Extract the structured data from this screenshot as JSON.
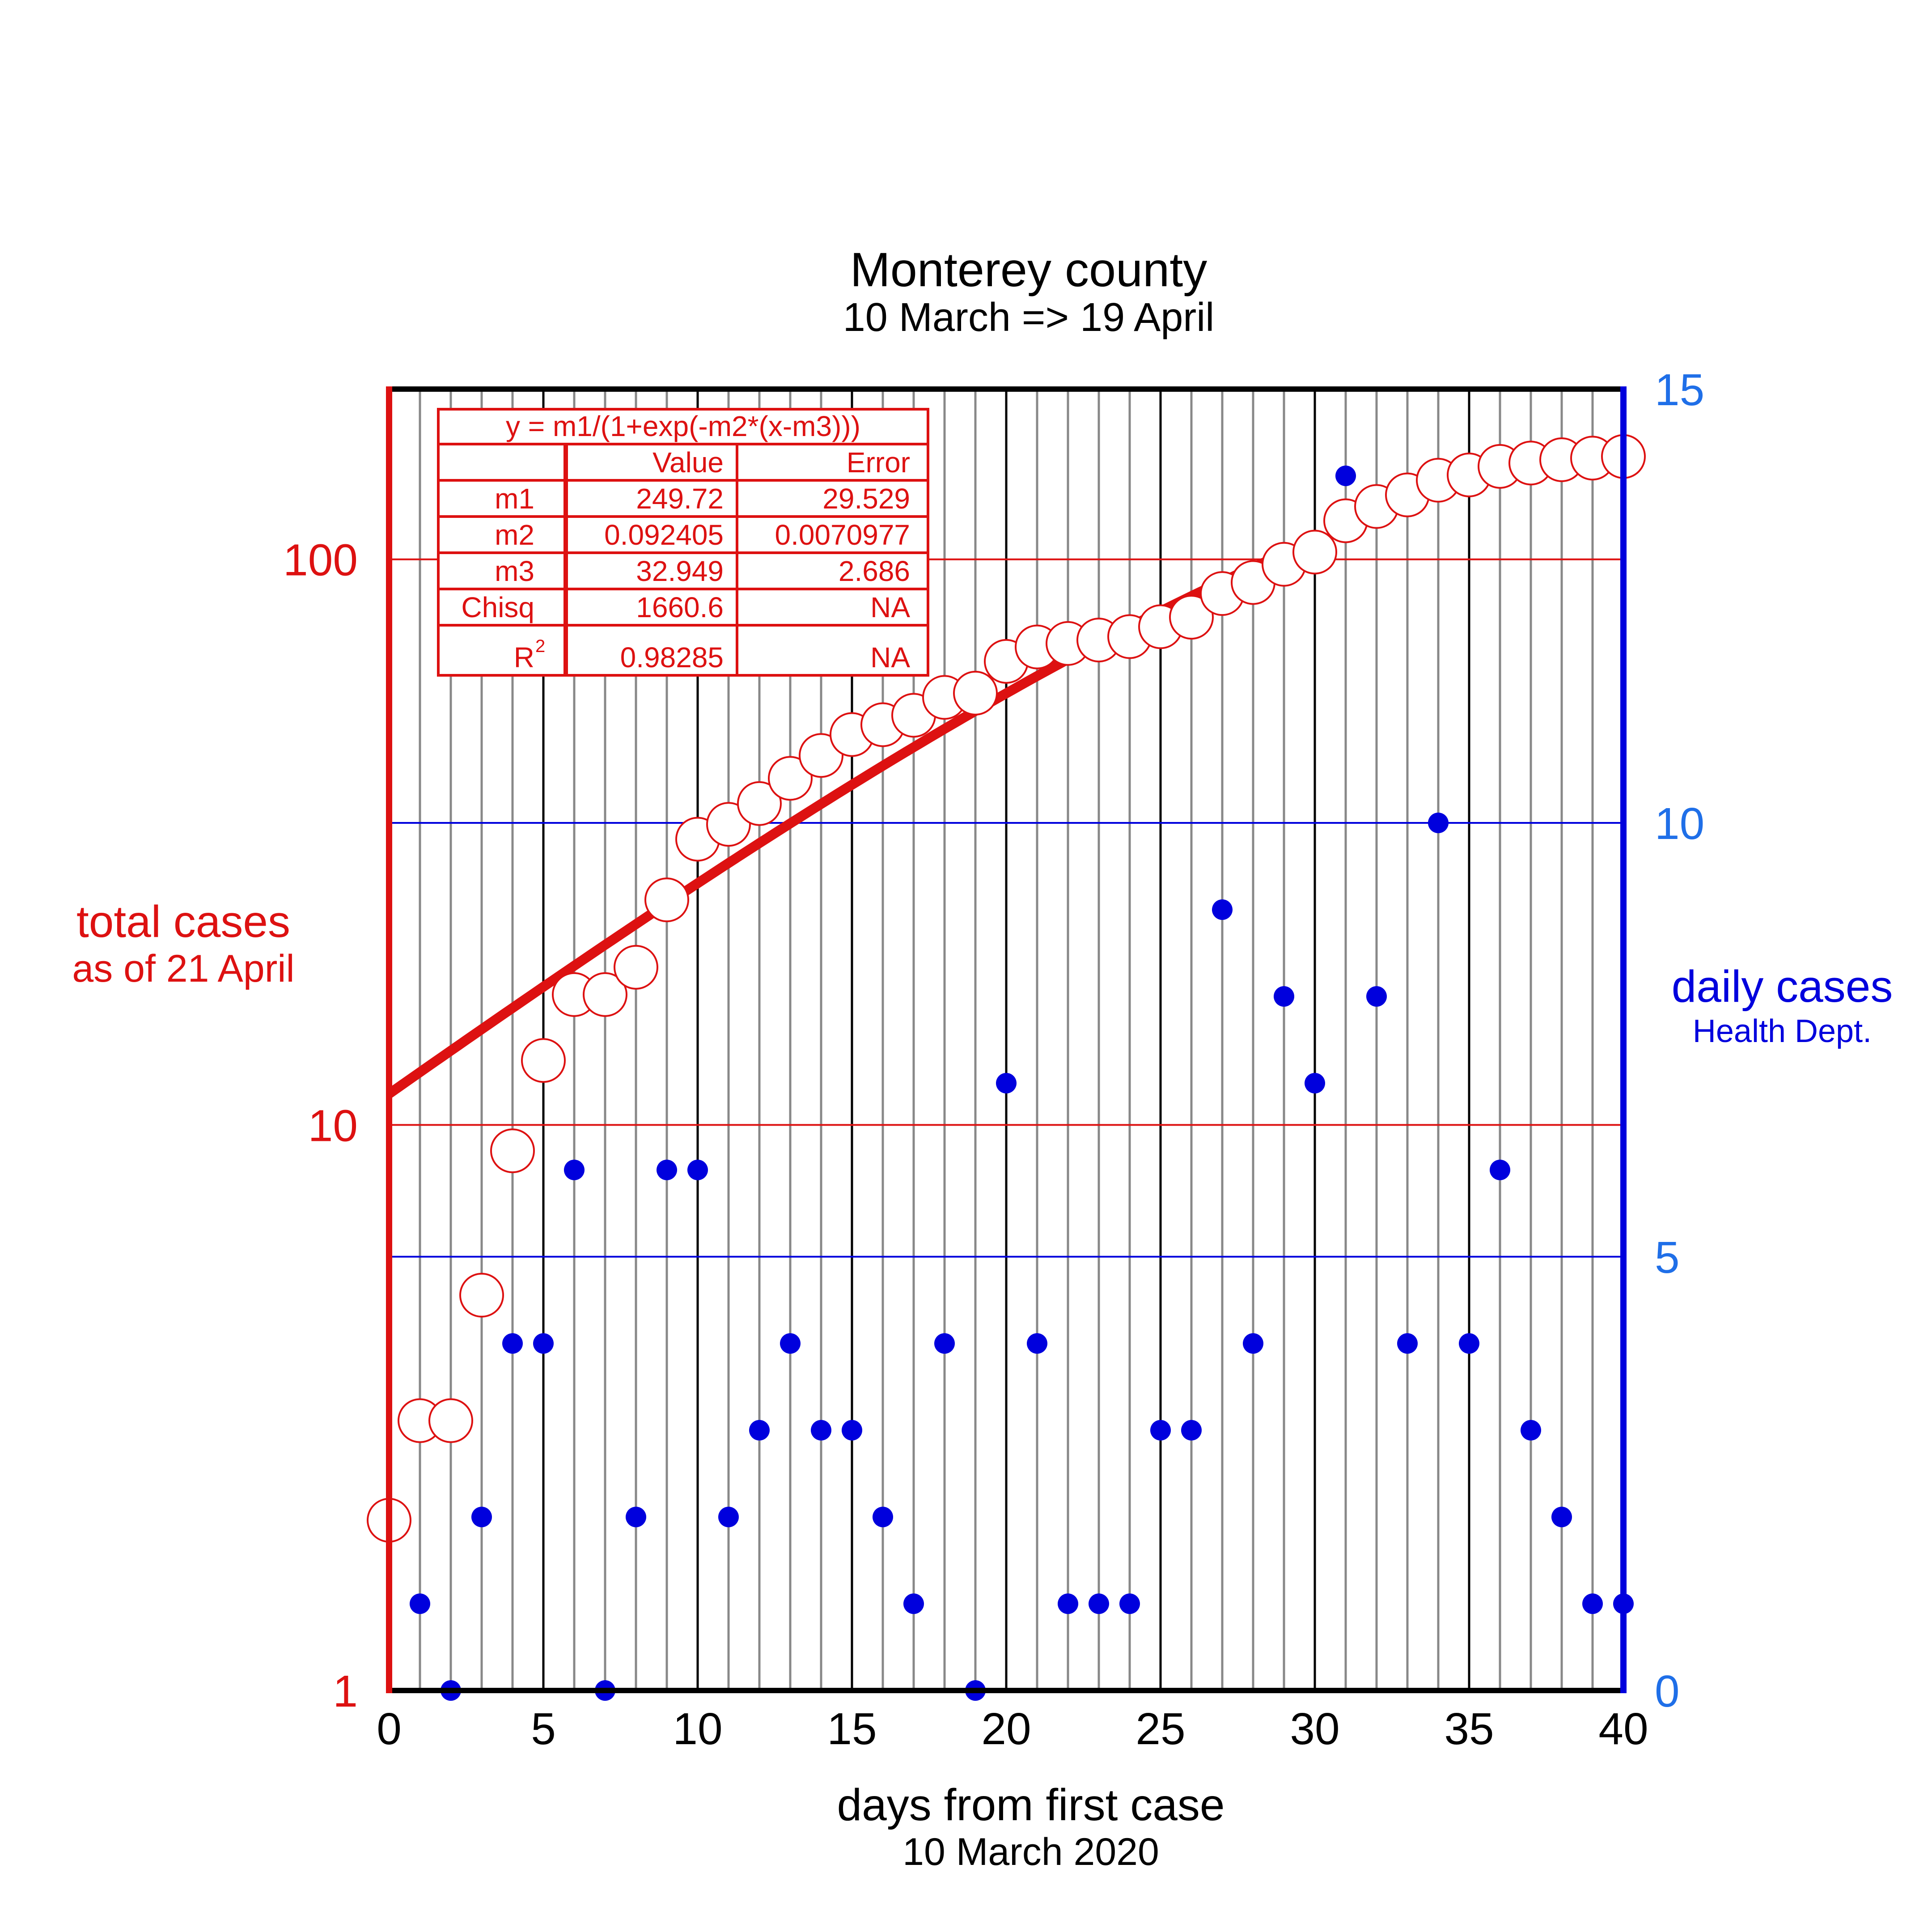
{
  "chart_data": {
    "type": "scatter",
    "title": "Monterey county",
    "subtitle": "10 March =>  19 April",
    "xlabel": "days from first case",
    "xlabel_sub": "10 March 2020",
    "ylabel_left": "total cases",
    "ylabel_left_sub": "as of 21 April",
    "ylabel_right": "daily cases",
    "ylabel_right_sub": "Health Dept.",
    "xlim": [
      0,
      40
    ],
    "ylim_left": [
      1,
      200
    ],
    "yscale_left": "log",
    "ylim_right": [
      0,
      15
    ],
    "x_ticks": [
      "0",
      "5",
      "10",
      "15",
      "20",
      "25",
      "30",
      "35",
      "40"
    ],
    "y_left_ticks": [
      "1",
      "10",
      "100"
    ],
    "y_right_ticks": [
      "0",
      "5",
      "10",
      "15"
    ],
    "grid": true,
    "colors": {
      "total": "#dd1111",
      "daily": "#0000dd",
      "right_axis_labels": "#1f6fe8",
      "axis": "#000000"
    },
    "series": [
      {
        "name": "total cases",
        "axis": "left",
        "x": [
          0,
          1,
          2,
          3,
          4,
          5,
          6,
          7,
          8,
          9,
          10,
          11,
          12,
          13,
          14,
          15,
          16,
          17,
          18,
          19,
          20,
          21,
          22,
          23,
          24,
          25,
          26,
          27,
          28,
          29,
          30,
          31,
          32,
          33,
          34,
          35,
          36,
          37,
          38,
          39,
          40
        ],
        "values": [
          2,
          3,
          3,
          5,
          9,
          13,
          17,
          17,
          19,
          25,
          32,
          34,
          37,
          41,
          45,
          49,
          51,
          53,
          57,
          58,
          66,
          70,
          71,
          72,
          73,
          76,
          79,
          87,
          91,
          98,
          103,
          117,
          124,
          130,
          138,
          141,
          146,
          148,
          150,
          151,
          152
        ]
      },
      {
        "name": "daily cases",
        "axis": "right",
        "x": [
          0,
          1,
          2,
          3,
          4,
          5,
          6,
          7,
          8,
          9,
          10,
          11,
          12,
          13,
          14,
          15,
          16,
          17,
          18,
          19,
          20,
          21,
          22,
          23,
          24,
          25,
          26,
          27,
          28,
          29,
          30,
          31,
          32,
          33,
          34,
          35,
          36,
          37,
          38,
          39,
          40
        ],
        "values": [
          2,
          1,
          0,
          2,
          4,
          4,
          6,
          0,
          2,
          6,
          6,
          2,
          3,
          4,
          3,
          3,
          2,
          1,
          4,
          0,
          7,
          4,
          1,
          1,
          1,
          3,
          3,
          9,
          4,
          8,
          7,
          14,
          8,
          4,
          10,
          4,
          6,
          3,
          2,
          1,
          1
        ]
      }
    ],
    "fit": {
      "formula": "y = m1/(1+exp(-m2*(x-m3)))",
      "m1": 249.72,
      "m2": 0.092405,
      "m3": 32.949,
      "x_range": [
        0,
        29
      ]
    },
    "fit_table": {
      "header": [
        "",
        "Value",
        "Error"
      ],
      "rows": [
        [
          "m1",
          "249.72",
          "29.529"
        ],
        [
          "m2",
          "0.092405",
          "0.0070977"
        ],
        [
          "m3",
          "32.949",
          "2.686"
        ],
        [
          "Chisq",
          "1660.6",
          "NA"
        ],
        [
          "R",
          "0.98285",
          "NA"
        ]
      ],
      "r_superscript": "2"
    }
  }
}
